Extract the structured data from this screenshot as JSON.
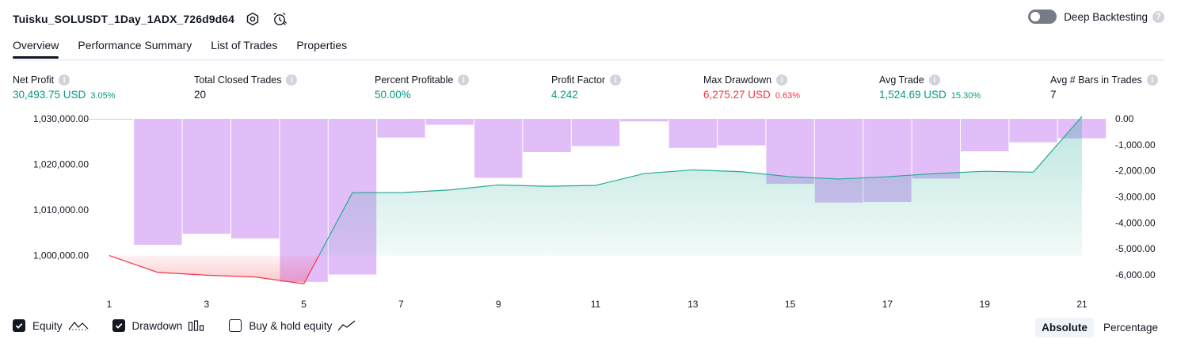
{
  "header": {
    "strategy_name": "Tuisku_SOLUSDT_1Day_1ADX_726d9d64",
    "deep_backtesting_label": "Deep Backtesting",
    "deep_backtesting_enabled": false
  },
  "tabs": [
    {
      "label": "Overview",
      "active": true
    },
    {
      "label": "Performance Summary",
      "active": false
    },
    {
      "label": "List of Trades",
      "active": false
    },
    {
      "label": "Properties",
      "active": false
    }
  ],
  "metrics": {
    "net_profit": {
      "label": "Net Profit",
      "value": "30,493.75 USD",
      "pct": "3.05%"
    },
    "total_closed_trades": {
      "label": "Total Closed Trades",
      "value": "20"
    },
    "percent_profitable": {
      "label": "Percent Profitable",
      "value": "50.00%"
    },
    "profit_factor": {
      "label": "Profit Factor",
      "value": "4.242"
    },
    "max_drawdown": {
      "label": "Max Drawdown",
      "value": "6,275.27 USD",
      "pct": "0.63%"
    },
    "avg_trade": {
      "label": "Avg Trade",
      "value": "1,524.69 USD",
      "pct": "15.30%"
    },
    "avg_bars": {
      "label": "Avg # Bars in Trades",
      "value": "7"
    }
  },
  "chart_data": {
    "type": "line",
    "left_axis": {
      "ticks": [
        1030000,
        1020000,
        1010000,
        1000000
      ],
      "tick_labels": [
        "1,030,000.00",
        "1,020,000.00",
        "1,010,000.00",
        "1,000,000.00"
      ],
      "range": [
        993500,
        1030000
      ]
    },
    "right_axis": {
      "ticks": [
        0,
        -1000,
        -2000,
        -3000,
        -4000,
        -5000,
        -6000
      ],
      "tick_labels": [
        "0.00",
        "-1,000.00",
        "-2,000.00",
        "-3,000.00",
        "-4,000.00",
        "-5,000.00",
        "-6,000.00"
      ],
      "range": [
        -6400,
        0
      ]
    },
    "x_ticks": [
      "1",
      "3",
      "5",
      "7",
      "9",
      "11",
      "13",
      "15",
      "17",
      "19",
      "21"
    ],
    "x": [
      1,
      2,
      3,
      4,
      5,
      6,
      7,
      8,
      9,
      10,
      11,
      12,
      13,
      14,
      15,
      16,
      17,
      18,
      19,
      20,
      21
    ],
    "series": [
      {
        "name": "Equity",
        "values": [
          1000000,
          996300,
          995700,
          995300,
          993800,
          1013800,
          1013800,
          1014400,
          1015500,
          1015200,
          1015400,
          1018000,
          1018800,
          1018400,
          1017300,
          1016800,
          1017300,
          1018000,
          1018500,
          1018300,
          1030494
        ]
      },
      {
        "name": "Drawdown",
        "values": [
          -30,
          -4850,
          -4420,
          -4600,
          -6275,
          -5990,
          -720,
          -230,
          -2270,
          -1280,
          -1050,
          -100,
          -1120,
          -1020,
          -2500,
          -3220,
          -3200,
          -2300,
          -1250,
          -900,
          -750
        ]
      }
    ],
    "colors": {
      "equity_up": "#22ab94",
      "equity_down": "#f23645",
      "drawdown_bar": "#ce93f5"
    }
  },
  "legend": {
    "equity": {
      "label": "Equity",
      "checked": true
    },
    "drawdown": {
      "label": "Drawdown",
      "checked": true
    },
    "buy_hold": {
      "label": "Buy & hold equity",
      "checked": false
    }
  },
  "view_mode": {
    "absolute_label": "Absolute",
    "percentage_label": "Percentage",
    "selected": "Absolute"
  }
}
